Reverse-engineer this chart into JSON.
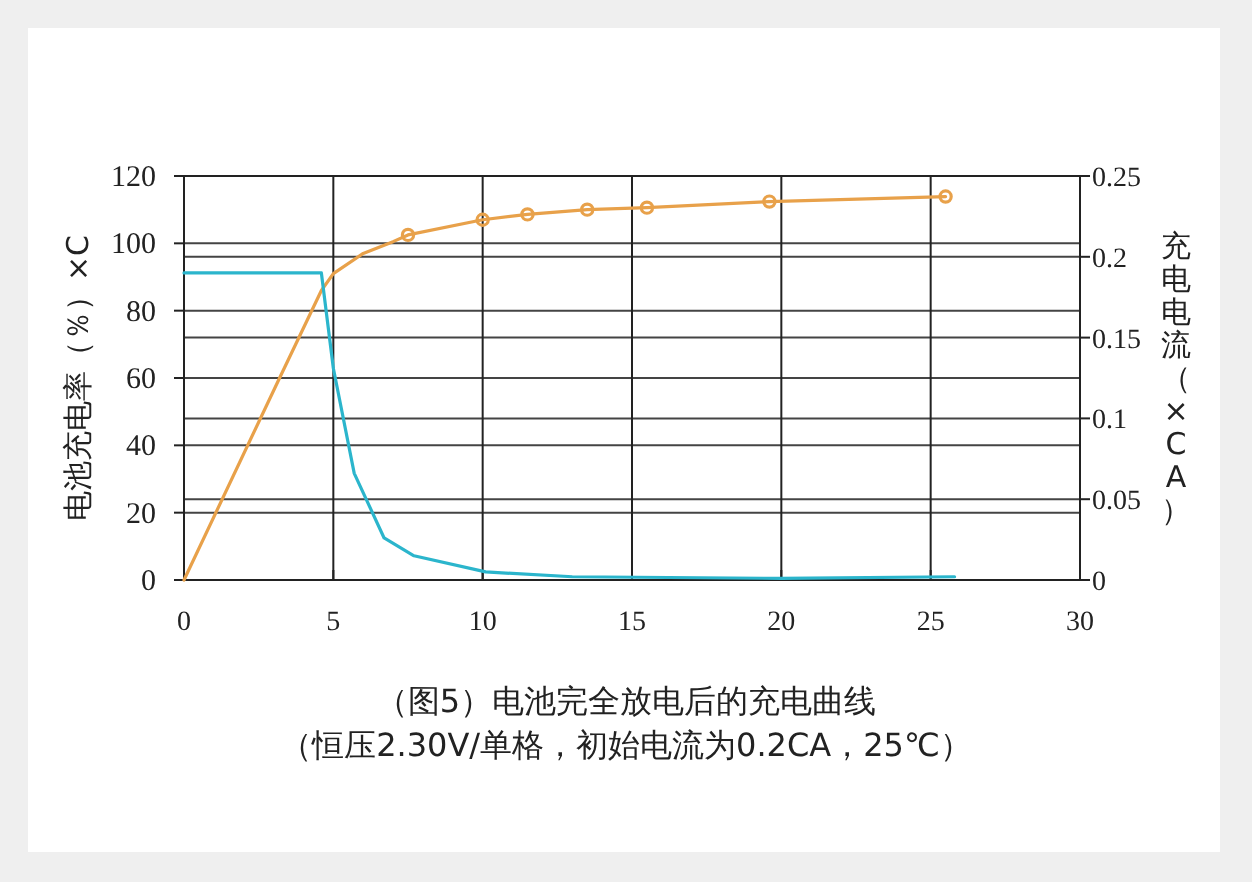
{
  "chart_data": {
    "type": "line",
    "title": "（图5）电池完全放电后的充电曲线",
    "subtitle": "（恒压2.30V/单格，初始电流为0.2CA，25℃）",
    "ylabel": "电池充电率（％）×C",
    "y2label": "充电电流（×CA）",
    "xlim": [
      0,
      30
    ],
    "xticks": [
      0,
      5,
      10,
      15,
      20,
      25,
      30
    ],
    "ylim": [
      0,
      120
    ],
    "yticks": [
      0,
      20,
      40,
      60,
      80,
      100,
      120
    ],
    "y2lim": [
      0,
      0.25
    ],
    "y2ticks": [
      0,
      {
        "value": 0.05,
        "label": "0.05"
      },
      {
        "value": 0.1,
        "label": "0.1"
      },
      {
        "value": 0.15,
        "label": "0.15"
      },
      {
        "value": 0.2,
        "label": "0.2"
      },
      {
        "value": 0.25,
        "label": "0.25"
      }
    ],
    "grid": true,
    "line_style": "solid",
    "series": [
      {
        "type": "line",
        "color": "#e8a14a",
        "marker": "none",
        "x": [
          0,
          3.2,
          4.6,
          5,
          6,
          7,
          7.5,
          10,
          11.5,
          13.5,
          15.5,
          19.6,
          25.5
        ],
        "values": [
          0,
          60,
          86,
          91,
          97,
          100.5,
          102.5,
          107,
          108.6,
          110,
          110.6,
          112.4,
          113.9
        ]
      },
      {
        "type": "scatter",
        "color": "#e8a14a",
        "marker": "circle",
        "x": [
          7.5,
          10,
          11.5,
          13.5,
          15.5,
          19.6,
          25.5
        ],
        "values": [
          102.5,
          107,
          108.6,
          110,
          110.6,
          112.4,
          113.9
        ]
      },
      {
        "type": "line",
        "axis": "y2",
        "color": "#2bb5cc",
        "marker": "none",
        "x": [
          0,
          4.6,
          5,
          5.7,
          6.7,
          7.7,
          10.1,
          13,
          20,
          25.8
        ],
        "values": [
          0.19,
          0.19,
          0.131,
          0.066,
          0.026,
          0.015,
          0.005,
          0.002,
          0.001,
          0.002
        ]
      }
    ]
  }
}
